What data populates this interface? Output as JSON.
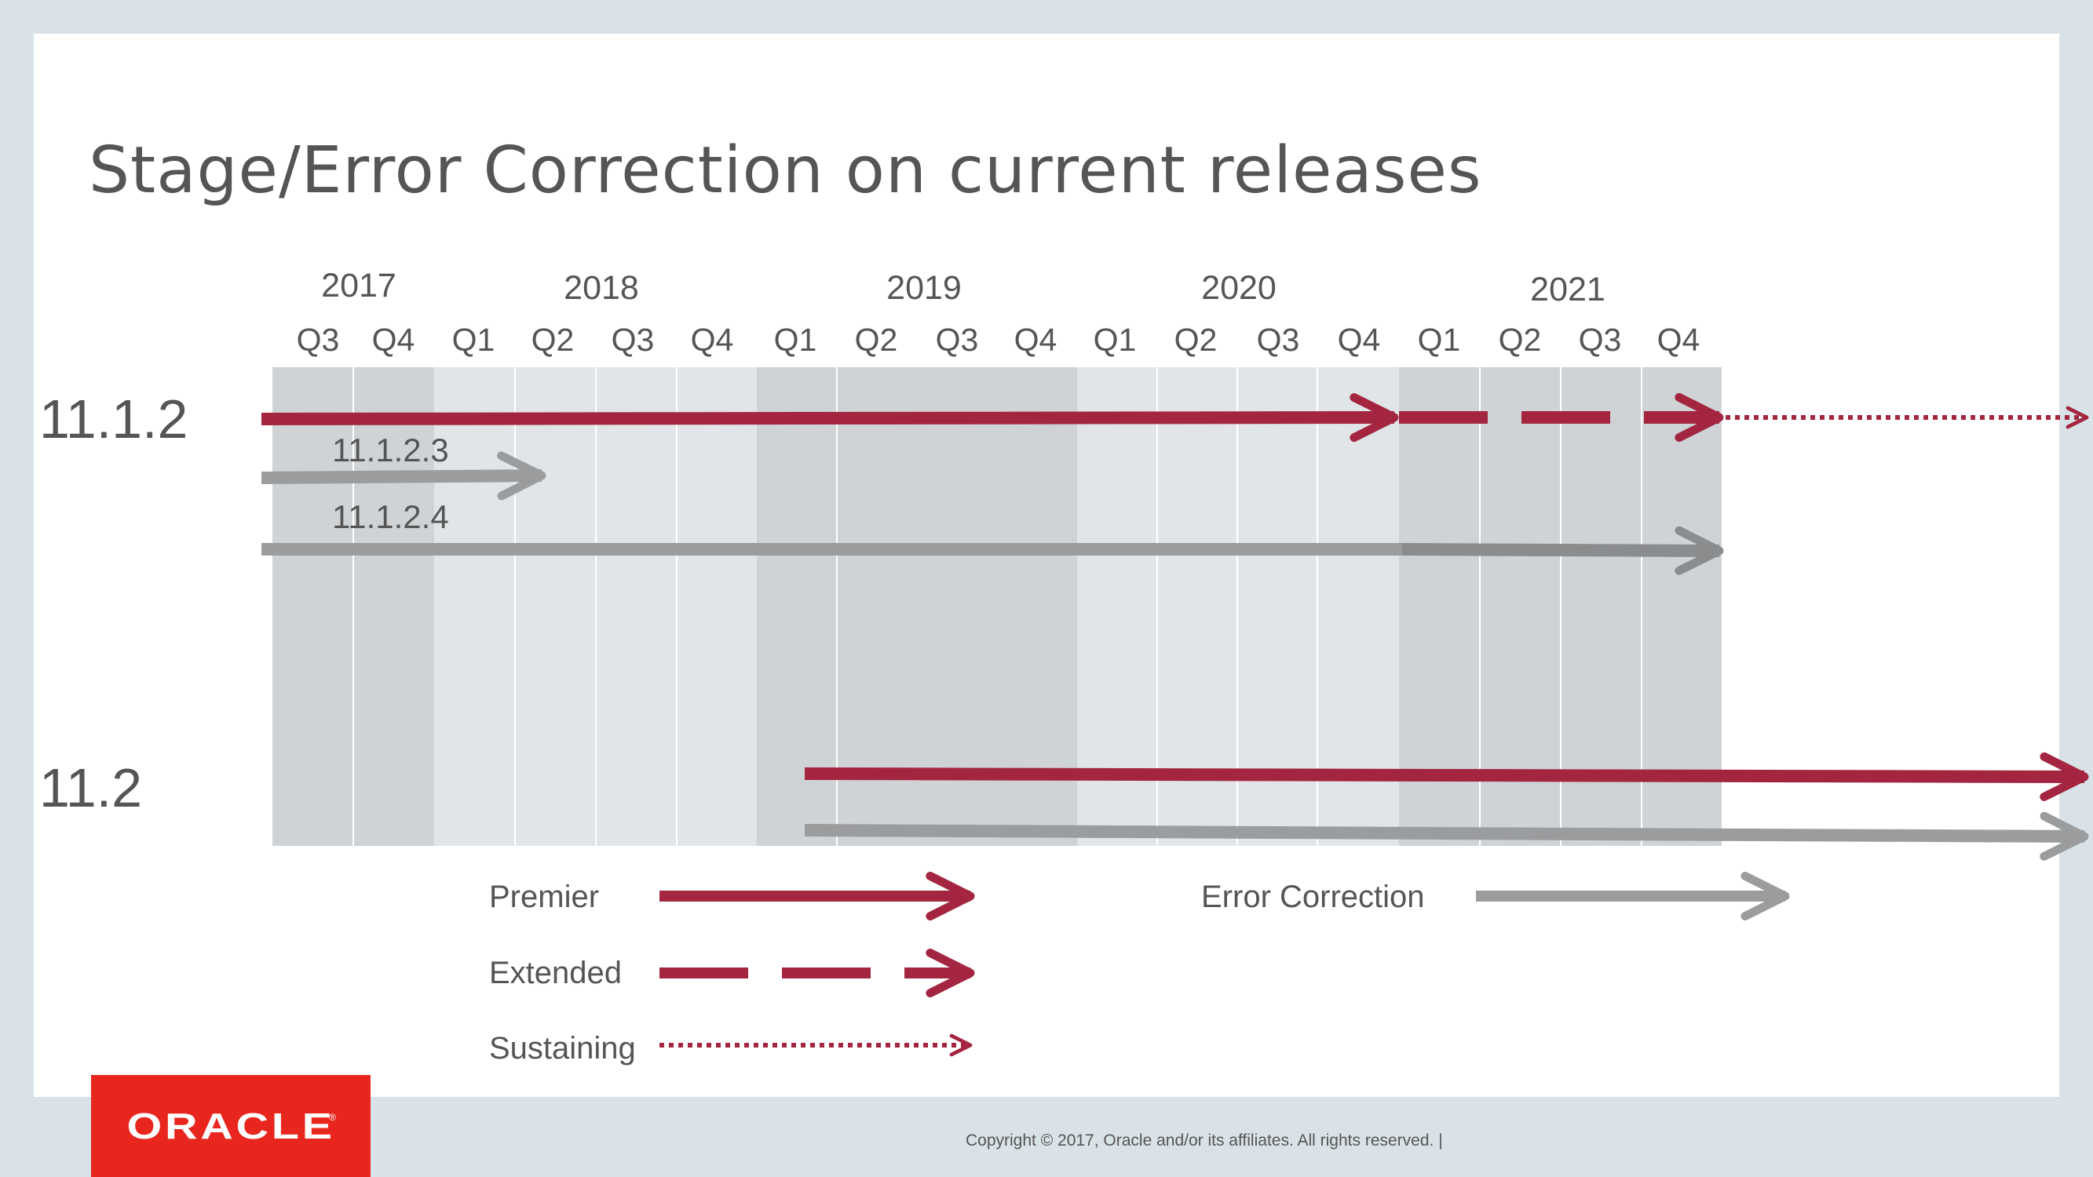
{
  "slide": {
    "title": "Stage/Error Correction on current releases",
    "copyright": "Copyright © 2017, Oracle and/or its affiliates. All rights reserved.  |",
    "logo_text": "ORACLE",
    "logo_mark": "®"
  },
  "timeline": {
    "years": [
      "2017",
      "2018",
      "2019",
      "2020",
      "2021"
    ],
    "quarters": [
      "Q3",
      "Q4",
      "Q1",
      "Q2",
      "Q3",
      "Q4",
      "Q1",
      "Q2",
      "Q3",
      "Q4",
      "Q1",
      "Q2",
      "Q3",
      "Q4",
      "Q1",
      "Q2",
      "Q3",
      "Q4"
    ]
  },
  "releases": [
    {
      "label": "11.1.2",
      "tracks": [
        {
          "type": "premier",
          "from": "2017 Q3",
          "to": "2020 Q4"
        },
        {
          "type": "extended",
          "from": "2020 Q4",
          "to": "2021 Q4"
        },
        {
          "type": "sustaining",
          "from": "2021 Q4",
          "to": "beyond"
        },
        {
          "type": "error-correction",
          "label": "11.1.2.3",
          "from": "2017 Q3",
          "to": "2018 Q2"
        },
        {
          "type": "error-correction",
          "label": "11.1.2.4",
          "from": "2017 Q3",
          "to": "2021 Q4"
        }
      ]
    },
    {
      "label": "11.2",
      "tracks": [
        {
          "type": "premier",
          "from": "2019 Q1",
          "to": "beyond"
        },
        {
          "type": "error-correction",
          "from": "2019 Q1",
          "to": "beyond"
        }
      ]
    }
  ],
  "legend": {
    "premier": "Premier",
    "extended": "Extended",
    "sustaining": "Sustaining",
    "error_correction": "Error Correction"
  },
  "colors": {
    "premier": "#a3253f",
    "error_correction": "#9a9c9e",
    "band_dark": "#cfd3d6",
    "band_light": "#e1e5e8",
    "logo": "#e8261e",
    "background": "#d9e2e6"
  }
}
